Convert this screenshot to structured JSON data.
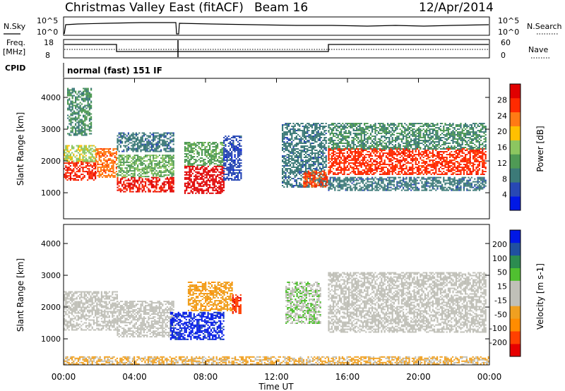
{
  "header": {
    "station": "Christmas Valley East (fitACF)",
    "beam": "Beam 16",
    "date": "12/Apr/2014"
  },
  "summary": {
    "nsky_label": "N.Sky",
    "nsearch_label": "N.Search",
    "nsky_ticks": [
      "10^5",
      "10^0"
    ],
    "freq_label_1": "Freq.",
    "freq_label_2": "[MHz]",
    "freq_ticks": [
      "18",
      "8"
    ],
    "nave_label": "Nave",
    "nave_ticks": [
      "60",
      "0"
    ],
    "cpid_label": "CPID",
    "cpid_text": "normal (fast) 151 IF"
  },
  "chart_data": [
    {
      "type": "heatmap",
      "title": "",
      "xlabel": "Time UT",
      "ylabel": "Slant Range [km]",
      "xlim": [
        0,
        24
      ],
      "ylim": [
        180,
        4600
      ],
      "x_tick_labels": [
        "00:00",
        "04:00",
        "08:00",
        "12:00",
        "16:00",
        "20:00",
        "00:00"
      ],
      "y_tick_labels": [
        "1000",
        "2000",
        "3000",
        "4000"
      ],
      "colorbar": {
        "label": "Power [dB]",
        "tick_labels": [
          "28",
          "24",
          "20",
          "16",
          "12",
          "8",
          "4"
        ],
        "range": [
          0,
          30
        ],
        "colors": [
          "#0018e6",
          "#2848b4",
          "#3c7a78",
          "#4f9a55",
          "#8cc660",
          "#ffc000",
          "#ff7a14",
          "#ff2a00",
          "#e00000"
        ]
      },
      "regions": [
        {
          "t": [
            0.0,
            1.8
          ],
          "r": [
            1400,
            2000
          ],
          "value": 26
        },
        {
          "t": [
            0.0,
            1.8
          ],
          "r": [
            2000,
            2500
          ],
          "value": 16
        },
        {
          "t": [
            1.8,
            3.0
          ],
          "r": [
            1500,
            2400
          ],
          "value": 22
        },
        {
          "t": [
            0.2,
            1.6
          ],
          "r": [
            2800,
            4300
          ],
          "value": 10
        },
        {
          "t": [
            3.0,
            6.2
          ],
          "r": [
            1050,
            1500
          ],
          "value": 27
        },
        {
          "t": [
            3.0,
            6.2
          ],
          "r": [
            1500,
            2200
          ],
          "value": 13
        },
        {
          "t": [
            3.0,
            6.2
          ],
          "r": [
            2300,
            2900
          ],
          "value": 8
        },
        {
          "t": [
            6.8,
            9.0
          ],
          "r": [
            1000,
            1850
          ],
          "value": 29
        },
        {
          "t": [
            6.8,
            9.0
          ],
          "r": [
            1850,
            2600
          ],
          "value": 12
        },
        {
          "t": [
            9.0,
            10.0
          ],
          "r": [
            1400,
            2800
          ],
          "value": 5
        },
        {
          "t": [
            12.3,
            14.8
          ],
          "r": [
            1200,
            3200
          ],
          "value": 8
        },
        {
          "t": [
            13.5,
            14.9
          ],
          "r": [
            1200,
            1700
          ],
          "value": 24
        },
        {
          "t": [
            14.9,
            23.8
          ],
          "r": [
            1600,
            2400
          ],
          "value": 25
        },
        {
          "t": [
            14.9,
            23.8
          ],
          "r": [
            2400,
            3200
          ],
          "value": 10
        },
        {
          "t": [
            14.9,
            23.8
          ],
          "r": [
            1100,
            1500
          ],
          "value": 8
        }
      ]
    },
    {
      "type": "heatmap",
      "title": "",
      "xlabel": "Time UT",
      "ylabel": "Slant Range [km]",
      "xlim": [
        0,
        24
      ],
      "ylim": [
        180,
        4600
      ],
      "x_tick_labels": [
        "00:00",
        "04:00",
        "08:00",
        "12:00",
        "16:00",
        "20:00",
        "00:00"
      ],
      "y_tick_labels": [
        "1000",
        "2000",
        "3000",
        "4000"
      ],
      "colorbar": {
        "label": "Velocity [m s-1]",
        "tick_labels": [
          "200",
          "100",
          "50",
          "15",
          "-15",
          "-50",
          "-100",
          "-200"
        ],
        "range": [
          -250,
          250
        ],
        "colors": [
          "#e60000",
          "#ff4000",
          "#ff8c00",
          "#f0a020",
          "#c0c0b8",
          "#c0c0b8",
          "#50c030",
          "#2c8c50",
          "#2050a0",
          "#0018e6"
        ]
      },
      "regions": [
        {
          "t": [
            0.0,
            3.0
          ],
          "r": [
            1300,
            2500
          ],
          "value": 0
        },
        {
          "t": [
            3.0,
            6.2
          ],
          "r": [
            1050,
            2200
          ],
          "value": 0
        },
        {
          "t": [
            6.0,
            9.0
          ],
          "r": [
            1000,
            1850
          ],
          "value": 220
        },
        {
          "t": [
            7.0,
            9.5
          ],
          "r": [
            1900,
            2800
          ],
          "value": -80
        },
        {
          "t": [
            9.5,
            10.0
          ],
          "r": [
            1800,
            2400
          ],
          "value": -180
        },
        {
          "t": [
            12.5,
            14.5
          ],
          "r": [
            1500,
            2800
          ],
          "value": 40
        },
        {
          "t": [
            14.9,
            23.8
          ],
          "r": [
            1200,
            3100
          ],
          "value": 0
        },
        {
          "t": [
            0.0,
            24.0
          ],
          "r": [
            200,
            450
          ],
          "value": -60
        }
      ]
    }
  ]
}
